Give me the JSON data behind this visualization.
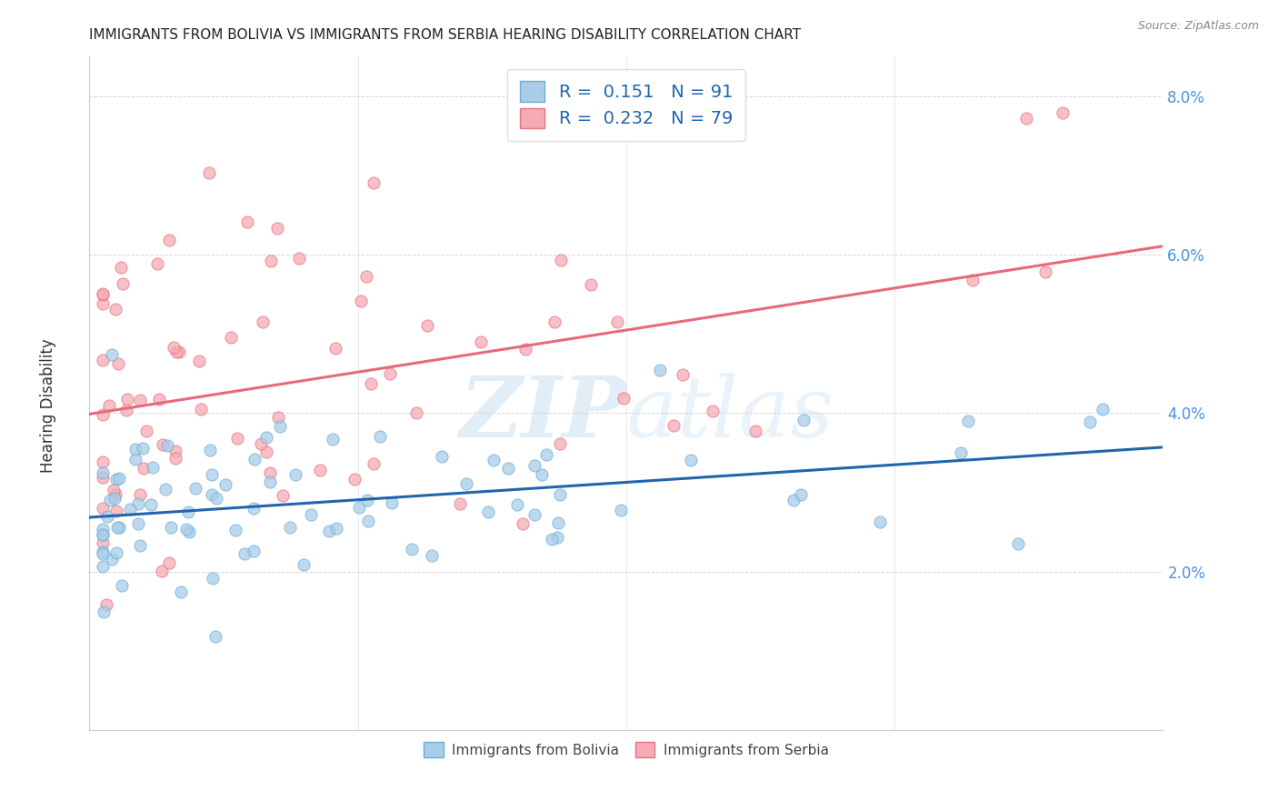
{
  "title": "IMMIGRANTS FROM BOLIVIA VS IMMIGRANTS FROM SERBIA HEARING DISABILITY CORRELATION CHART",
  "source": "Source: ZipAtlas.com",
  "ylabel": "Hearing Disability",
  "xlim": [
    0.0,
    0.08
  ],
  "ylim": [
    0.0,
    0.085
  ],
  "bolivia_color": "#a8cde8",
  "bolivia_edge": "#6aaed6",
  "serbia_color": "#f4abb4",
  "serbia_edge": "#e8717d",
  "bolivia_line_color": "#2166ac",
  "serbia_line_color": "#e8697a",
  "R_bolivia": 0.151,
  "N_bolivia": 91,
  "R_serbia": 0.232,
  "N_serbia": 79,
  "background_color": "#ffffff",
  "watermark_color": "#d0e8f5",
  "tick_color": "#4a90d9",
  "grid_color": "#cccccc"
}
